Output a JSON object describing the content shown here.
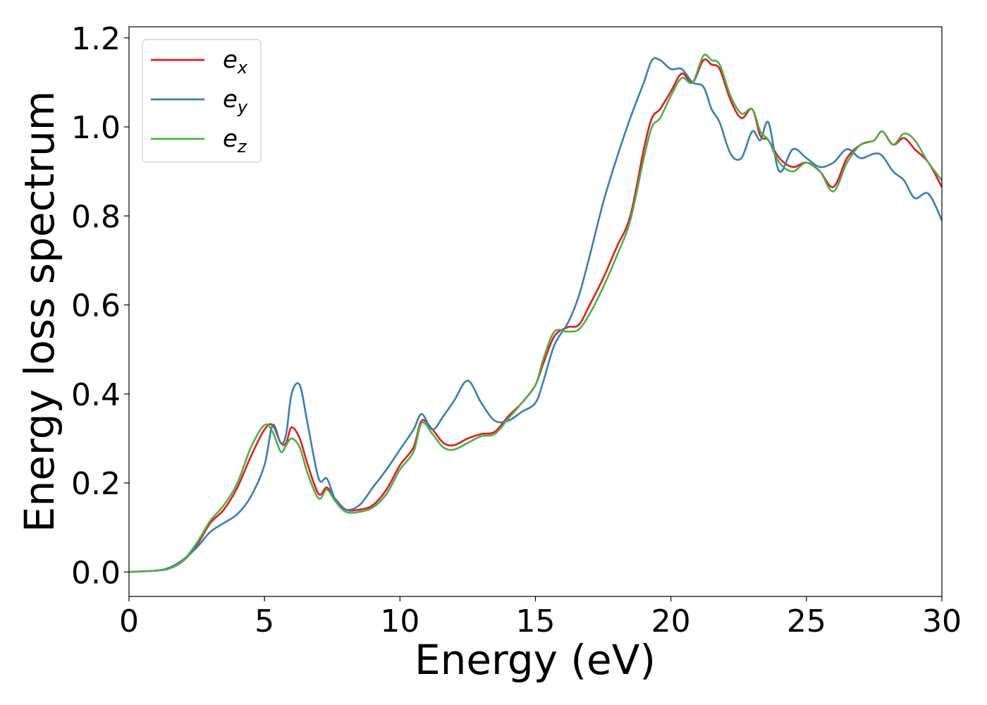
{
  "chart_data": {
    "type": "line",
    "xlabel": "Energy (eV)",
    "ylabel": "Energy loss spectrum",
    "xlim": [
      0,
      30
    ],
    "ylim": [
      -0.055,
      1.225
    ],
    "xticks": [
      0,
      5,
      10,
      15,
      20,
      25,
      30
    ],
    "xtick_labels": [
      "0",
      "5",
      "10",
      "15",
      "20",
      "25",
      "30"
    ],
    "yticks": [
      0.0,
      0.2,
      0.4,
      0.6,
      0.8,
      1.0,
      1.2
    ],
    "ytick_labels": [
      "0.0",
      "0.2",
      "0.4",
      "0.6",
      "0.8",
      "1.0",
      "1.2"
    ],
    "grid": false,
    "legend_position": "top-left",
    "series": [
      {
        "name": "e_x",
        "label_main": "e",
        "label_sub": "x",
        "color": "#e41a1c",
        "x": [
          0,
          1,
          1.5,
          2,
          2.5,
          3,
          3.5,
          4,
          4.5,
          5,
          5.3,
          5.6,
          5.8,
          6.0,
          6.3,
          6.6,
          7.0,
          7.3,
          7.6,
          8.0,
          8.5,
          9.0,
          9.5,
          10.0,
          10.5,
          10.8,
          11.2,
          11.6,
          12.0,
          12.5,
          13.0,
          13.5,
          14.0,
          14.5,
          15.0,
          15.3,
          15.7,
          16.2,
          16.6,
          17.0,
          17.5,
          18.0,
          18.5,
          19.0,
          19.3,
          19.6,
          20.0,
          20.4,
          20.8,
          21.2,
          21.5,
          21.8,
          22.2,
          22.6,
          23.0,
          23.3,
          23.6,
          24.0,
          24.5,
          25.0,
          25.5,
          26.0,
          26.5,
          27.0,
          27.5,
          27.8,
          28.2,
          28.6,
          29.0,
          29.5,
          30.0
        ],
        "y": [
          0.0,
          0.003,
          0.008,
          0.025,
          0.06,
          0.11,
          0.14,
          0.19,
          0.26,
          0.32,
          0.33,
          0.29,
          0.29,
          0.325,
          0.3,
          0.24,
          0.175,
          0.19,
          0.165,
          0.14,
          0.14,
          0.15,
          0.185,
          0.24,
          0.28,
          0.34,
          0.32,
          0.29,
          0.285,
          0.3,
          0.31,
          0.315,
          0.35,
          0.38,
          0.42,
          0.47,
          0.53,
          0.55,
          0.555,
          0.6,
          0.66,
          0.73,
          0.8,
          0.95,
          1.02,
          1.04,
          1.08,
          1.12,
          1.1,
          1.15,
          1.14,
          1.13,
          1.06,
          1.02,
          1.04,
          0.98,
          0.97,
          0.93,
          0.91,
          0.92,
          0.9,
          0.865,
          0.93,
          0.96,
          0.97,
          0.99,
          0.96,
          0.975,
          0.95,
          0.92,
          0.865
        ]
      },
      {
        "name": "e_y",
        "label_main": "e",
        "label_sub": "y",
        "color": "#377eb8",
        "x": [
          0,
          1,
          1.5,
          2,
          2.5,
          3,
          3.5,
          4,
          4.5,
          5,
          5.3,
          5.6,
          5.8,
          6.0,
          6.3,
          6.6,
          7.0,
          7.3,
          7.6,
          8.0,
          8.5,
          9.0,
          9.5,
          10.0,
          10.5,
          10.8,
          11.2,
          11.6,
          12.0,
          12.5,
          13.0,
          13.5,
          14.0,
          14.5,
          15.0,
          15.3,
          15.7,
          16.2,
          16.6,
          17.0,
          17.5,
          18.0,
          18.5,
          19.0,
          19.3,
          19.6,
          20.0,
          20.4,
          20.8,
          21.2,
          21.5,
          21.8,
          22.2,
          22.6,
          23.0,
          23.3,
          23.6,
          24.0,
          24.5,
          25.0,
          25.5,
          26.0,
          26.5,
          27.0,
          27.5,
          27.8,
          28.2,
          28.6,
          29.0,
          29.5,
          30.0
        ],
        "y": [
          0.0,
          0.003,
          0.01,
          0.028,
          0.055,
          0.09,
          0.11,
          0.13,
          0.17,
          0.24,
          0.33,
          0.29,
          0.31,
          0.4,
          0.42,
          0.33,
          0.21,
          0.21,
          0.165,
          0.14,
          0.15,
          0.19,
          0.23,
          0.275,
          0.32,
          0.355,
          0.32,
          0.35,
          0.385,
          0.43,
          0.38,
          0.34,
          0.34,
          0.36,
          0.38,
          0.43,
          0.51,
          0.56,
          0.62,
          0.71,
          0.83,
          0.93,
          1.02,
          1.1,
          1.15,
          1.15,
          1.13,
          1.13,
          1.1,
          1.09,
          1.04,
          1.01,
          0.94,
          0.93,
          0.99,
          0.97,
          1.01,
          0.9,
          0.95,
          0.93,
          0.91,
          0.92,
          0.95,
          0.93,
          0.94,
          0.935,
          0.9,
          0.88,
          0.84,
          0.85,
          0.79
        ]
      },
      {
        "name": "e_z",
        "label_main": "e",
        "label_sub": "z",
        "color": "#4daf4a",
        "x": [
          0,
          1,
          1.5,
          2,
          2.5,
          3,
          3.5,
          4,
          4.5,
          5,
          5.3,
          5.6,
          5.8,
          6.0,
          6.3,
          6.6,
          7.0,
          7.3,
          7.6,
          8.0,
          8.5,
          9.0,
          9.5,
          10.0,
          10.5,
          10.8,
          11.2,
          11.6,
          12.0,
          12.5,
          13.0,
          13.5,
          14.0,
          14.5,
          15.0,
          15.3,
          15.7,
          16.2,
          16.6,
          17.0,
          17.5,
          18.0,
          18.5,
          19.0,
          19.3,
          19.6,
          20.0,
          20.4,
          20.8,
          21.2,
          21.5,
          21.8,
          22.2,
          22.6,
          23.0,
          23.3,
          23.6,
          24.0,
          24.5,
          25.0,
          25.5,
          26.0,
          26.5,
          27.0,
          27.5,
          27.8,
          28.2,
          28.6,
          29.0,
          29.5,
          30.0
        ],
        "y": [
          0.0,
          0.003,
          0.008,
          0.026,
          0.065,
          0.115,
          0.15,
          0.2,
          0.28,
          0.33,
          0.315,
          0.27,
          0.285,
          0.3,
          0.28,
          0.22,
          0.165,
          0.185,
          0.16,
          0.135,
          0.135,
          0.145,
          0.175,
          0.23,
          0.27,
          0.335,
          0.31,
          0.28,
          0.275,
          0.29,
          0.305,
          0.31,
          0.345,
          0.38,
          0.42,
          0.48,
          0.54,
          0.54,
          0.545,
          0.58,
          0.64,
          0.71,
          0.79,
          0.93,
          1.0,
          1.02,
          1.07,
          1.11,
          1.1,
          1.16,
          1.15,
          1.14,
          1.07,
          1.03,
          1.04,
          0.99,
          0.97,
          0.92,
          0.9,
          0.92,
          0.9,
          0.855,
          0.92,
          0.96,
          0.97,
          0.99,
          0.96,
          0.985,
          0.97,
          0.92,
          0.88
        ]
      }
    ]
  }
}
